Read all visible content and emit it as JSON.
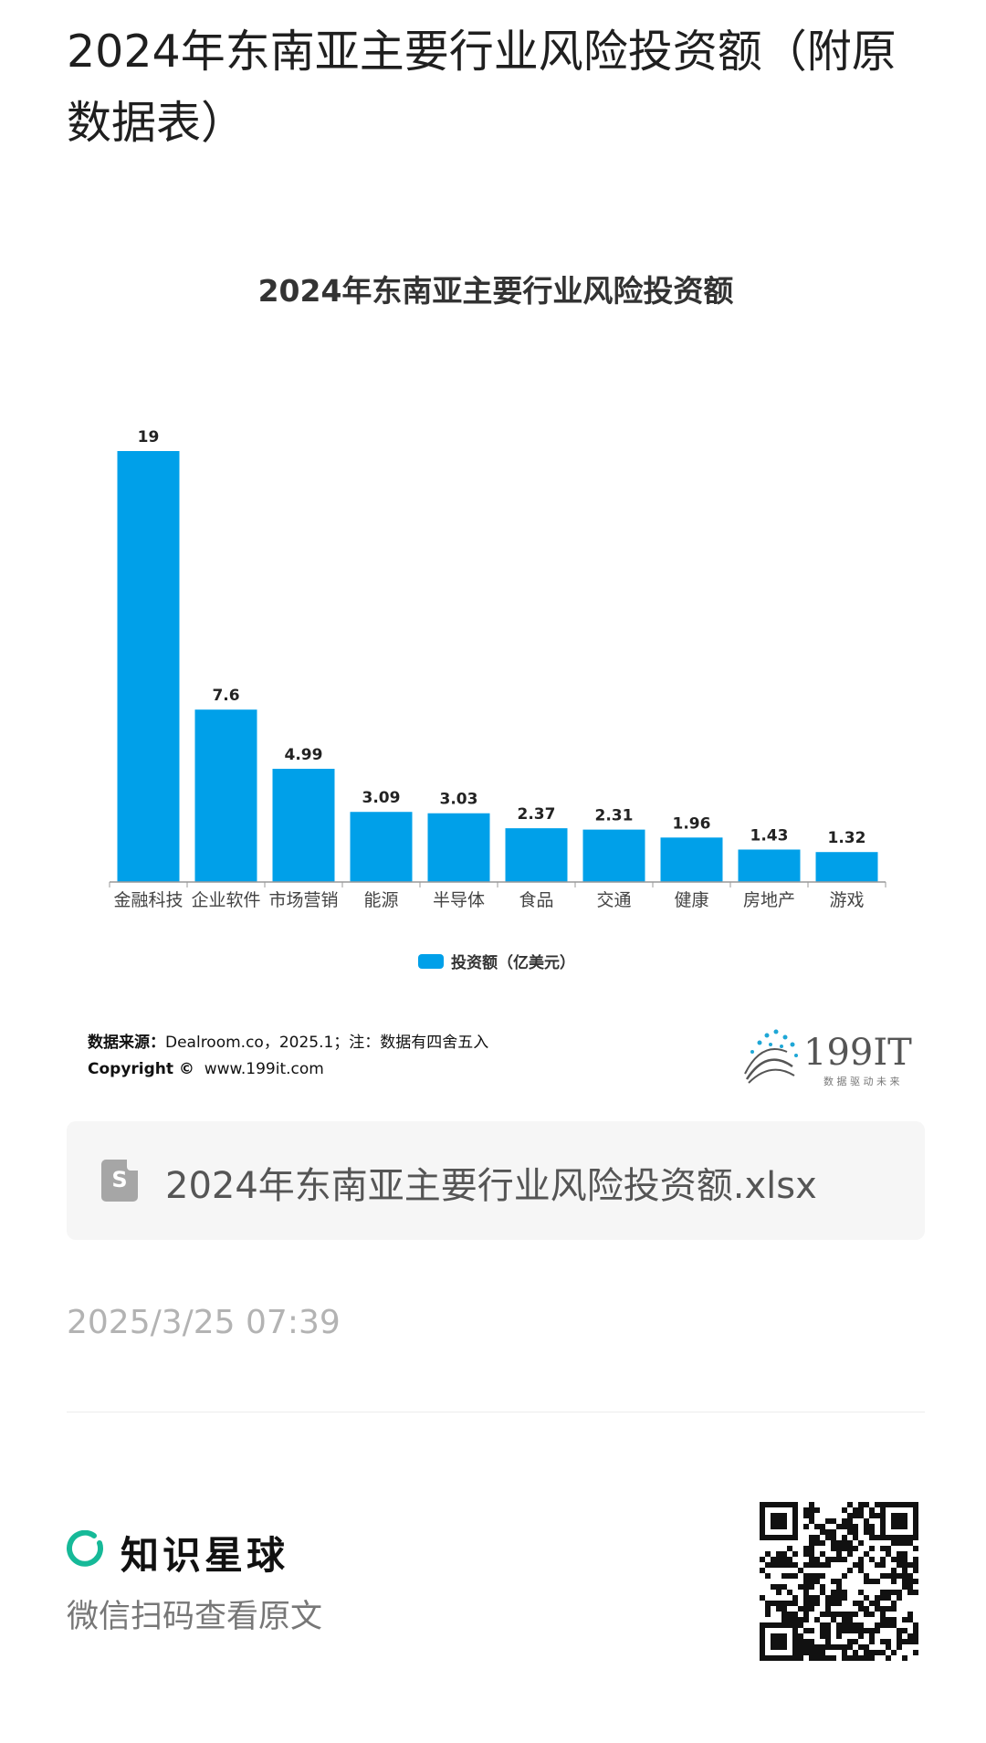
{
  "page": {
    "title": "2024年东南亚主要行业风险投资额（附原数据表）"
  },
  "chart": {
    "bar_color": "#00A0E9"
  },
  "chart_data": {
    "type": "bar",
    "title": "2024年东南亚主要行业风险投资额",
    "categories": [
      "金融科技",
      "企业软件",
      "市场营销",
      "能源",
      "半导体",
      "食品",
      "交通",
      "健康",
      "房地产",
      "游戏"
    ],
    "series": [
      {
        "name": "投资额（亿美元）",
        "values": [
          19,
          7.6,
          4.99,
          3.09,
          3.03,
          2.37,
          2.31,
          1.96,
          1.43,
          1.32
        ],
        "labels": [
          "19",
          "7.6",
          "4.99",
          "3.09",
          "3.03",
          "2.37",
          "2.31",
          "1.96",
          "1.43",
          "1.32"
        ]
      }
    ],
    "xlabel": "",
    "ylabel": "",
    "ylim": [
      0,
      19
    ],
    "grid": false,
    "legend": "bottom-center"
  },
  "source": {
    "label": "数据来源：",
    "text": "Dealroom.co，2025.1；注：数据有四舍五入",
    "copyright_label": "Copyright ©",
    "copyright_text": "www.199it.com"
  },
  "logo": {
    "name": "199IT",
    "slogan": "数 据 驱 动 未 来",
    "icon": "dandelion-logo-icon"
  },
  "attachment": {
    "icon": "spreadsheet-file-icon",
    "icon_letter": "S",
    "filename": "2024年东南亚主要行业风险投资额.xlsx"
  },
  "meta": {
    "timestamp": "2025/3/25 07:39"
  },
  "footer": {
    "brand": "知识星球",
    "brand_icon": "zsxq-ring-icon",
    "brand_color": "#16B998",
    "subtitle": "微信扫码查看原文",
    "qr_icon": "qr-code-icon"
  }
}
